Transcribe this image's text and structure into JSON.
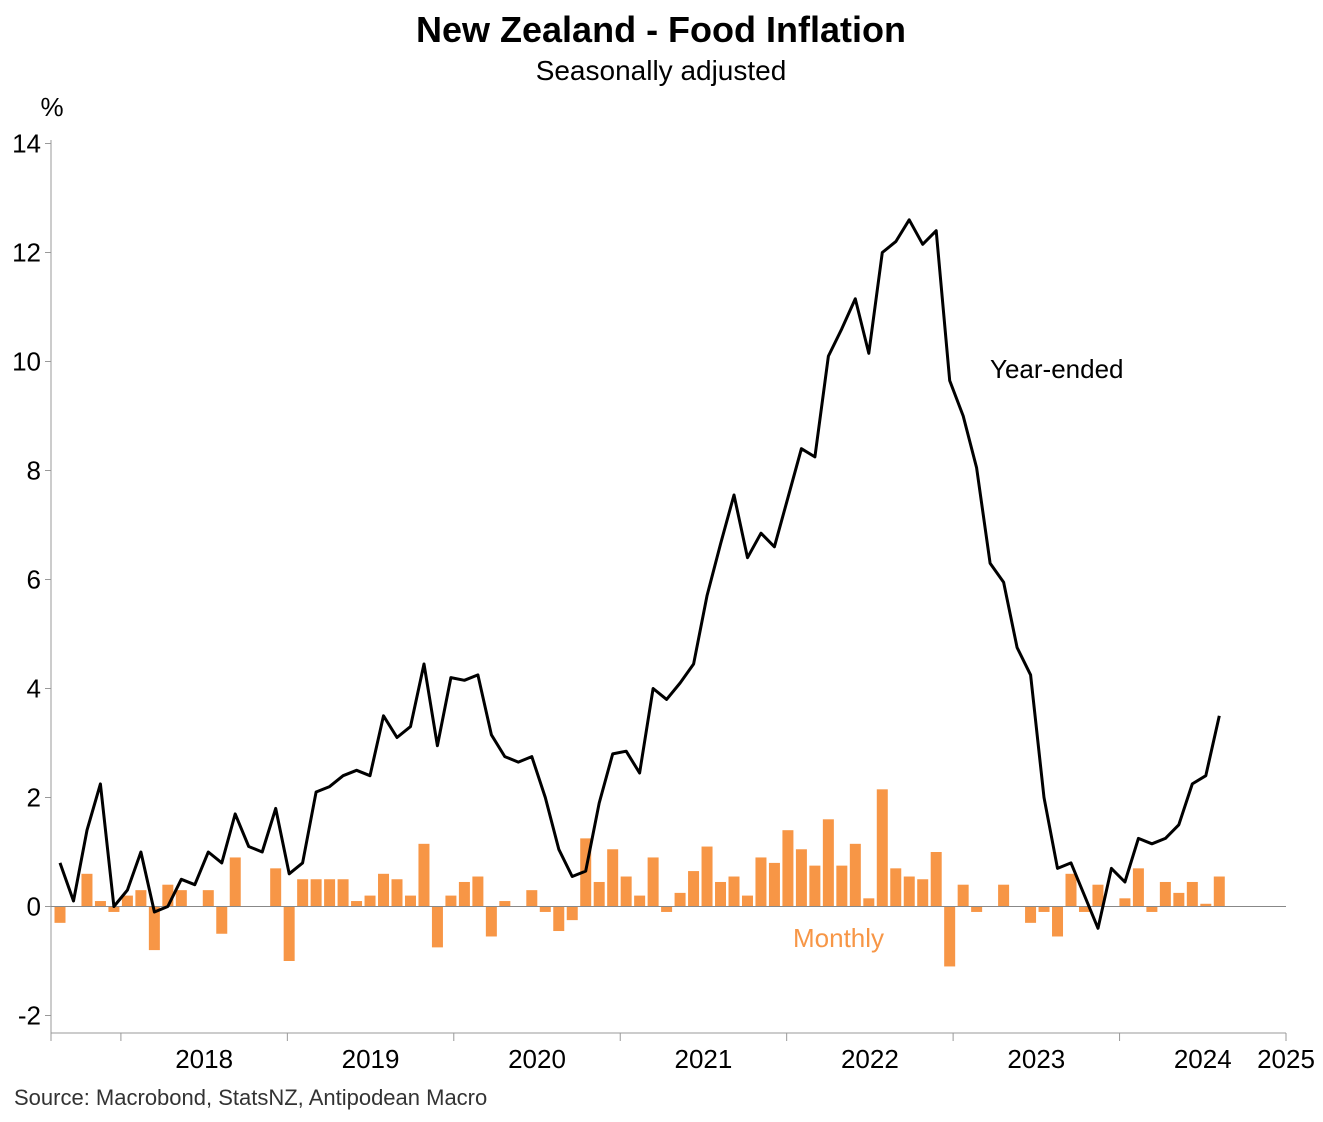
{
  "chart_data": {
    "type": "bar+line",
    "title": "New Zealand - Food Inflation",
    "subtitle": "Seasonally adjusted",
    "ylabel": "%",
    "ylim": [
      -2.5,
      14
    ],
    "yticks": [
      -2,
      0,
      2,
      4,
      6,
      8,
      10,
      12,
      14
    ],
    "x_start": "2017-08",
    "x_end": "2025-01",
    "xticks": [
      "2018",
      "2019",
      "2020",
      "2021",
      "2022",
      "2023",
      "2024",
      "2025"
    ],
    "series": [
      {
        "name": "Monthly",
        "type": "bar",
        "color": "#F79646",
        "values": [
          -0.3,
          null,
          0.6,
          0.1,
          -0.1,
          0.2,
          0.3,
          -0.8,
          0.4,
          0.3,
          null,
          0.3,
          -0.5,
          0.9,
          null,
          null,
          0.7,
          -1.0,
          0.5,
          0.5,
          0.5,
          0.5,
          0.1,
          0.2,
          0.6,
          0.5,
          0.2,
          1.15,
          -0.75,
          0.2,
          0.45,
          0.55,
          -0.55,
          0.1,
          null,
          0.3,
          -0.1,
          -0.45,
          -0.25,
          1.25,
          0.45,
          1.05,
          0.55,
          0.2,
          0.9,
          -0.1,
          0.25,
          0.65,
          1.1,
          0.45,
          0.55,
          0.2,
          0.9,
          0.8,
          1.4,
          1.05,
          0.75,
          1.6,
          0.75,
          1.15,
          0.15,
          2.15,
          0.7,
          0.55,
          0.5,
          1.0,
          -1.1,
          0.4,
          -0.1,
          null,
          0.4,
          null,
          -0.3,
          -0.1,
          -0.55,
          0.6,
          -0.1,
          0.4,
          null,
          0.15,
          0.7,
          -0.1,
          0.45,
          0.25,
          0.45,
          0.05,
          0.55
        ]
      },
      {
        "name": "Year-ended",
        "type": "line",
        "color": "#000000",
        "values": [
          0.8,
          0.1,
          1.4,
          2.25,
          0.0,
          0.3,
          1.0,
          -0.1,
          0.0,
          0.5,
          0.4,
          1.0,
          0.8,
          1.7,
          1.1,
          1.0,
          1.8,
          0.6,
          0.8,
          2.1,
          2.2,
          2.4,
          2.5,
          2.4,
          3.5,
          3.1,
          3.3,
          4.45,
          2.95,
          4.2,
          4.15,
          4.25,
          3.15,
          2.75,
          2.65,
          2.75,
          2.0,
          1.05,
          0.55,
          0.65,
          1.9,
          2.8,
          2.85,
          2.45,
          4.0,
          3.8,
          4.1,
          4.45,
          5.7,
          6.65,
          7.55,
          6.4,
          6.85,
          6.6,
          7.5,
          8.4,
          8.25,
          10.1,
          10.6,
          11.15,
          10.15,
          12.0,
          12.2,
          12.6,
          12.15,
          12.4,
          9.65,
          9.0,
          8.05,
          6.3,
          5.95,
          4.75,
          4.25,
          2.0,
          0.7,
          0.8,
          0.2,
          -0.4,
          0.7,
          0.45,
          1.25,
          1.15,
          1.25,
          1.5,
          2.25,
          2.4,
          3.5
        ]
      }
    ],
    "annotations": [
      "Year-ended",
      "Monthly"
    ],
    "source": "Source: Macrobond, StatsNZ, Antipodean Macro",
    "grid": false,
    "legend": "none"
  }
}
